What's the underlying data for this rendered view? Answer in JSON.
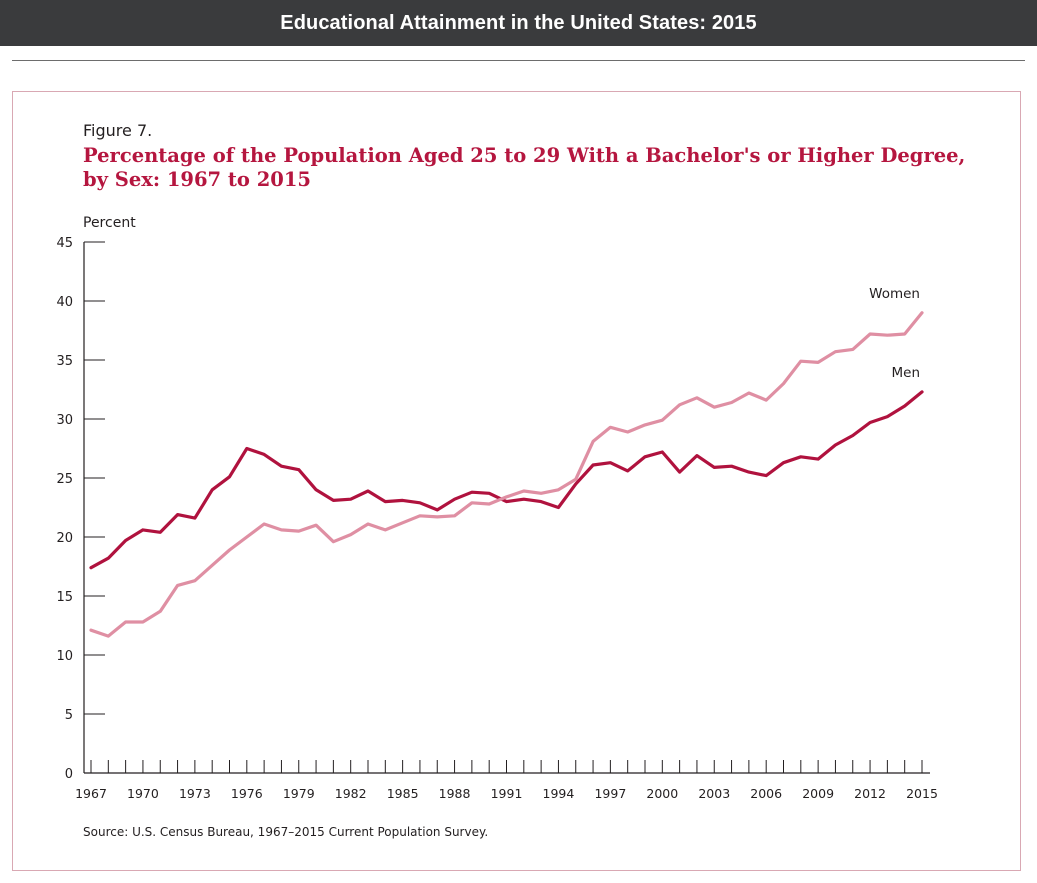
{
  "header": {
    "title": "Educational Attainment in the United States: 2015"
  },
  "figure": {
    "label": "Figure 7.",
    "title_line1": "Percentage of the Population Aged 25 to 29 With a Bachelor's or Higher Degree,",
    "title_line2": "by Sex: 1967 to 2015",
    "source": "Source: U.S. Census Bureau, 1967–2015 Current Population Survey."
  },
  "colors": {
    "header_bg": "#3a3b3d",
    "frame": "#d9a8b3",
    "title": "#b5163f",
    "men": "#b0123e",
    "women": "#df8fa3"
  },
  "chart_data": {
    "type": "line",
    "ylabel": "Percent",
    "xlabel": "",
    "ylim": [
      0,
      45
    ],
    "yticks": [
      0,
      5,
      10,
      15,
      20,
      25,
      30,
      35,
      40,
      45
    ],
    "xlim": [
      1967,
      2015
    ],
    "xticks": [
      1967,
      1970,
      1973,
      1976,
      1979,
      1982,
      1985,
      1988,
      1991,
      1994,
      1997,
      2000,
      2003,
      2006,
      2009,
      2012,
      2015
    ],
    "grid": false,
    "x": [
      1967,
      1968,
      1969,
      1970,
      1971,
      1972,
      1973,
      1974,
      1975,
      1976,
      1977,
      1978,
      1979,
      1980,
      1981,
      1982,
      1983,
      1984,
      1985,
      1986,
      1987,
      1988,
      1989,
      1990,
      1991,
      1992,
      1993,
      1994,
      1995,
      1996,
      1997,
      1998,
      1999,
      2000,
      2001,
      2002,
      2003,
      2004,
      2005,
      2006,
      2007,
      2008,
      2009,
      2010,
      2011,
      2012,
      2013,
      2014,
      2015
    ],
    "series": [
      {
        "name": "Men",
        "color": "#b0123e",
        "values": [
          17.4,
          18.2,
          19.7,
          20.6,
          20.4,
          21.9,
          21.6,
          24.0,
          25.1,
          27.5,
          27.0,
          26.0,
          25.7,
          24.0,
          23.1,
          23.2,
          23.9,
          23.0,
          23.1,
          22.9,
          22.3,
          23.2,
          23.8,
          23.7,
          23.0,
          23.2,
          23.0,
          22.5,
          24.5,
          26.1,
          26.3,
          25.6,
          26.8,
          27.2,
          25.5,
          26.9,
          25.9,
          26.0,
          25.5,
          25.2,
          26.3,
          26.8,
          26.6,
          27.8,
          28.6,
          29.7,
          30.2,
          31.1,
          32.3
        ]
      },
      {
        "name": "Women",
        "color": "#df8fa3",
        "values": [
          12.1,
          11.6,
          12.8,
          12.8,
          13.7,
          15.9,
          16.3,
          17.6,
          18.9,
          20.0,
          21.1,
          20.6,
          20.5,
          21.0,
          19.6,
          20.2,
          21.1,
          20.6,
          21.2,
          21.8,
          21.7,
          21.8,
          22.9,
          22.8,
          23.4,
          23.9,
          23.7,
          24.0,
          24.9,
          28.1,
          29.3,
          28.9,
          29.5,
          29.9,
          31.2,
          31.8,
          31.0,
          31.4,
          32.2,
          31.6,
          33.0,
          34.9,
          34.8,
          35.7,
          35.9,
          37.2,
          37.1,
          37.2,
          39.0
        ]
      }
    ],
    "annotations": [
      {
        "text": "Women",
        "series": "Women"
      },
      {
        "text": "Men",
        "series": "Men"
      }
    ]
  }
}
